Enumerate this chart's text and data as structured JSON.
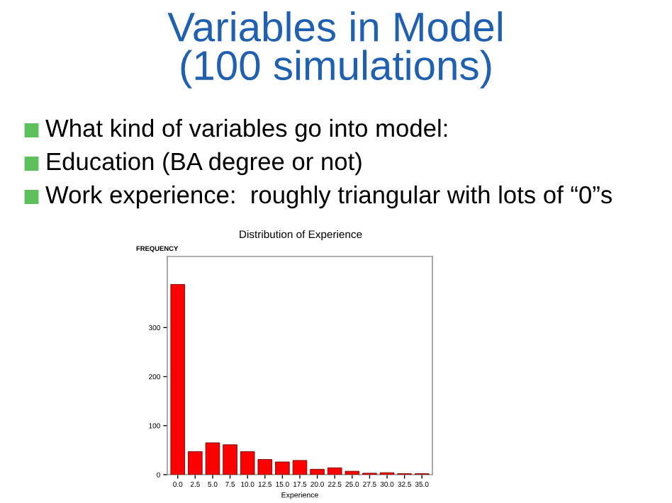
{
  "chart_data": {
    "type": "bar",
    "title": "Variables in Model\n(100 simulations)",
    "subtitle": "Distribution of Experience",
    "annotations": [
      "What kind of variables go into model:",
      "Education (BA degree or not)",
      "Work experience:  roughly triangular with lots of “0”s"
    ],
    "xlabel": "Experience",
    "ylabel": "FREQUENCY",
    "categories": [
      "0.0",
      "2.5",
      "5.0",
      "7.5",
      "10.0",
      "12.5",
      "15.0",
      "17.5",
      "20.0",
      "22.5",
      "25.0",
      "27.5",
      "30.0",
      "32.5",
      "35.0"
    ],
    "values": [
      388,
      47,
      65,
      61,
      47,
      31,
      26,
      29,
      11,
      14,
      7,
      3,
      4,
      2,
      2
    ],
    "color": "#ff0000",
    "ylim": [
      0,
      445
    ],
    "yticks": [
      0,
      100,
      200,
      300
    ],
    "grid": false
  }
}
